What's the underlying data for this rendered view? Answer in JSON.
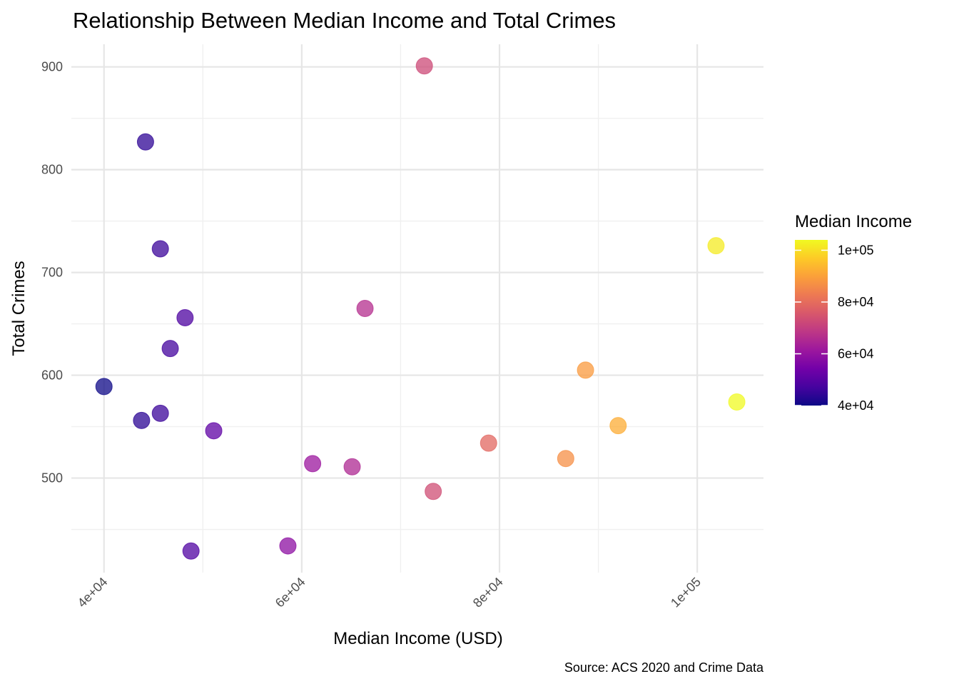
{
  "chart_data": {
    "type": "scatter",
    "title": "Relationship Between Median Income and Total Crimes",
    "xlabel": "Median Income (USD)",
    "ylabel": "Total Crimes",
    "caption": "Source: ACS 2020 and Crime Data",
    "xlim": [
      36700,
      106700
    ],
    "ylim": [
      408,
      922
    ],
    "x_ticks": [
      40000,
      60000,
      80000,
      100000
    ],
    "x_tick_labels": [
      "4e+04",
      "6e+04",
      "8e+04",
      "1e+05"
    ],
    "x_minor_ticks": [
      50000,
      70000,
      90000
    ],
    "y_ticks": [
      500,
      600,
      700,
      800,
      900
    ],
    "y_tick_labels": [
      "500",
      "600",
      "700",
      "800",
      "900"
    ],
    "y_minor_ticks": [
      450,
      550,
      650,
      750,
      850
    ],
    "grid": true,
    "points": [
      {
        "x": 40000,
        "y": 589
      },
      {
        "x": 43800,
        "y": 556
      },
      {
        "x": 44200,
        "y": 827
      },
      {
        "x": 45700,
        "y": 723
      },
      {
        "x": 45700,
        "y": 563
      },
      {
        "x": 46700,
        "y": 626
      },
      {
        "x": 48200,
        "y": 656
      },
      {
        "x": 48800,
        "y": 429
      },
      {
        "x": 51100,
        "y": 546
      },
      {
        "x": 58600,
        "y": 434
      },
      {
        "x": 61100,
        "y": 514
      },
      {
        "x": 65100,
        "y": 511
      },
      {
        "x": 66400,
        "y": 665
      },
      {
        "x": 72400,
        "y": 901
      },
      {
        "x": 73300,
        "y": 487
      },
      {
        "x": 78900,
        "y": 534
      },
      {
        "x": 86700,
        "y": 519
      },
      {
        "x": 88700,
        "y": 605
      },
      {
        "x": 92000,
        "y": 551
      },
      {
        "x": 101900,
        "y": 726
      },
      {
        "x": 104000,
        "y": 574
      }
    ],
    "color_scale": {
      "name": "plasma",
      "title": "Median Income",
      "min": 40000,
      "max": 104000,
      "ticks": [
        40000,
        60000,
        80000,
        100000
      ],
      "tick_labels": [
        "4e+04",
        "6e+04",
        "8e+04",
        "1e+05"
      ],
      "stops": [
        "#0d0887",
        "#46039f",
        "#7201a8",
        "#9c179e",
        "#bd3786",
        "#d8576b",
        "#ed7953",
        "#fb9f3a",
        "#fdca26",
        "#f0f921"
      ]
    },
    "point_opacity": 0.75,
    "legend_position": "right"
  }
}
